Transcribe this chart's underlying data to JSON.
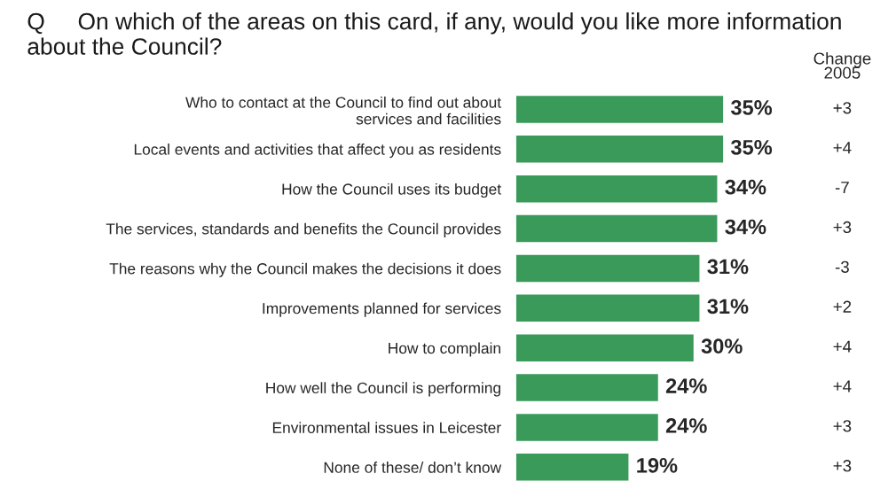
{
  "chart_data": {
    "type": "bar",
    "orientation": "horizontal",
    "title": "Q     On which of the areas on this card, if any, would you like more information about the Council?",
    "categories": [
      "Who to contact at the Council to find out about\nservices and facilities",
      "Local events and activities that affect you as residents",
      "How the Council uses its budget",
      "The services, standards and benefits the Council provides",
      "The reasons why the Council makes the decisions it does",
      "Improvements planned for services",
      "How to complain",
      "How well the Council is performing",
      "Environmental issues in Leicester",
      "None of these/ don’t know"
    ],
    "values": [
      35,
      35,
      34,
      34,
      31,
      31,
      30,
      24,
      24,
      19
    ],
    "value_labels": [
      "35%",
      "35%",
      "34%",
      "34%",
      "31%",
      "31%",
      "30%",
      "24%",
      "24%",
      "19%"
    ],
    "color": "#3a9a5a",
    "grid": false,
    "annotations": [
      "Change\n2005",
      "+3",
      "+4",
      "-7",
      "+3",
      "-3",
      "+2",
      "+4",
      "+4",
      "+3",
      "+3"
    ]
  }
}
